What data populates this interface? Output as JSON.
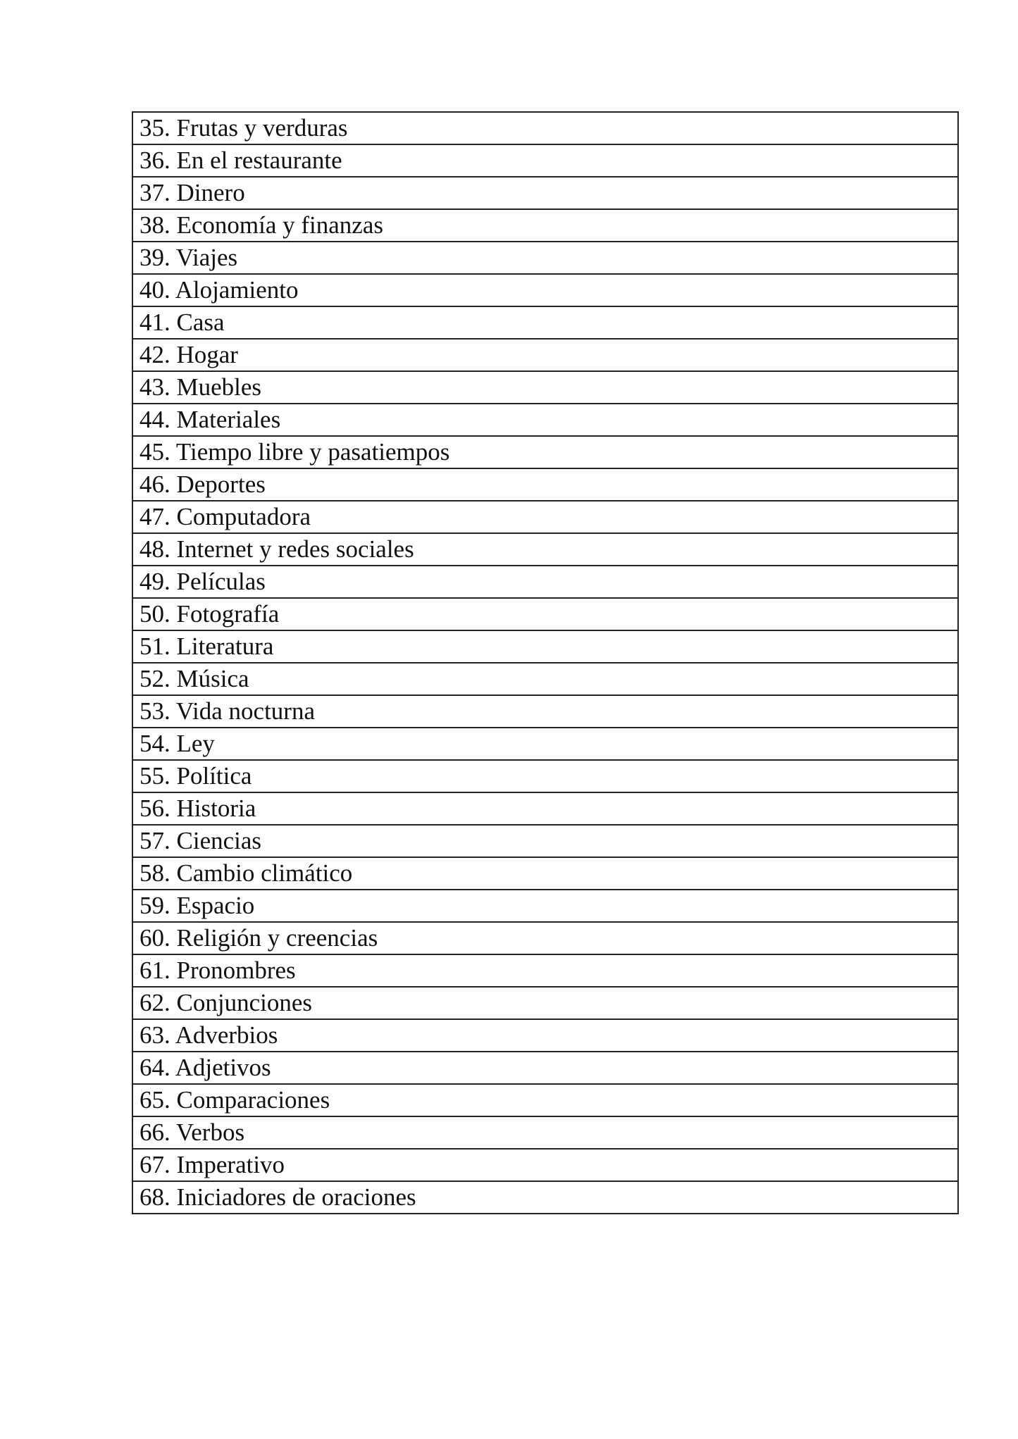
{
  "topics": [
    "35. Frutas y verduras",
    "36. En el restaurante",
    "37. Dinero",
    "38. Economía y finanzas",
    "39. Viajes",
    "40. Alojamiento",
    "41. Casa",
    "42. Hogar",
    "43. Muebles",
    "44. Materiales",
    "45. Tiempo libre y pasatiempos",
    "46. Deportes",
    "47. Computadora",
    "48. Internet y redes sociales",
    "49. Películas",
    "50. Fotografía",
    "51. Literatura",
    "52. Música",
    "53. Vida nocturna",
    "54. Ley",
    "55. Política",
    "56. Historia",
    "57. Ciencias",
    "58. Cambio climático",
    "59. Espacio",
    "60. Religión y creencias",
    "61. Pronombres",
    "62. Conjunciones",
    "63. Adverbios",
    "64. Adjetivos",
    "65. Comparaciones",
    "66. Verbos",
    "67. Imperativo",
    "68. Iniciadores de oraciones"
  ]
}
